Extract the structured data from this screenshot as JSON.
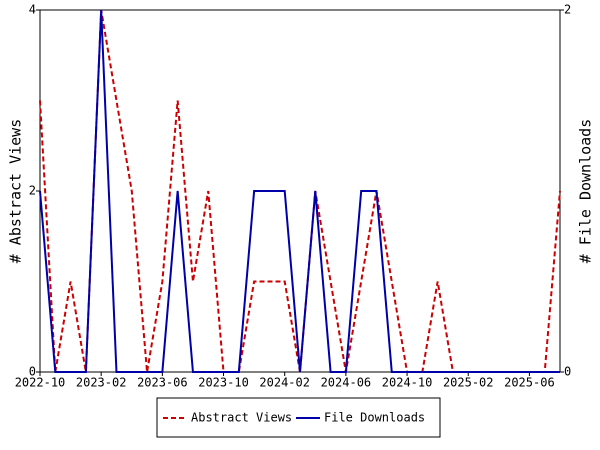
{
  "chart_data": {
    "type": "line",
    "ylabel": "# Abstract Views",
    "y2label": "# File Downloads",
    "categories": [
      "2022-10",
      null,
      null,
      null,
      "2023-02",
      null,
      null,
      null,
      "2023-06",
      null,
      null,
      null,
      "2023-10",
      null,
      null,
      null,
      "2024-02",
      null,
      null,
      null,
      "2024-06",
      null,
      null,
      null,
      "2024-10",
      null,
      null,
      null,
      "2025-02",
      null,
      null,
      null,
      "2025-06",
      null,
      null
    ],
    "series": [
      {
        "name": "Abstract Views",
        "color": "#cc0000",
        "dash": true,
        "values": [
          3,
          0,
          1,
          0,
          4,
          3,
          2,
          0,
          1,
          3,
          1,
          2,
          0,
          0,
          1,
          1,
          1,
          0,
          2,
          1,
          0,
          1,
          2,
          1,
          0,
          0,
          1,
          0,
          0,
          0,
          0,
          0,
          0,
          0,
          2
        ]
      },
      {
        "name": "File Downloads",
        "color": "#0000aa",
        "axis": "y2",
        "values": [
          1,
          0,
          0,
          0,
          2,
          0,
          0,
          0,
          0,
          1,
          0,
          0,
          0,
          0,
          1,
          1,
          1,
          0,
          1,
          0,
          0,
          1,
          1,
          0,
          0,
          0,
          0,
          0,
          0,
          0,
          0,
          0,
          0,
          0,
          0
        ]
      }
    ],
    "ylim": [
      0,
      4
    ],
    "yticks": [
      0,
      2,
      4
    ],
    "y2lim": [
      0,
      2
    ],
    "y2ticks": [
      0,
      2
    ],
    "legend": "bottom"
  }
}
